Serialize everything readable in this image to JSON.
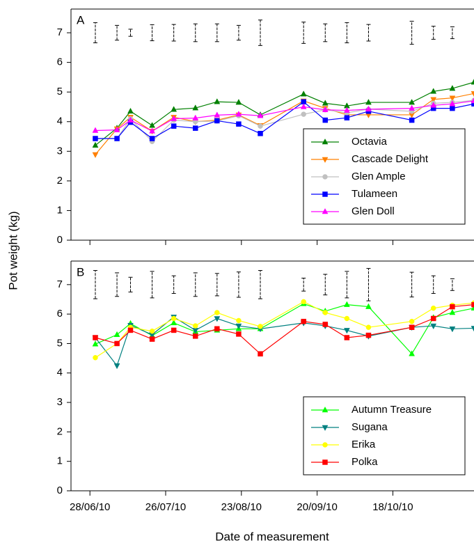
{
  "chart_data": [
    {
      "type": "line",
      "panel": "A",
      "y_label": "Pot weight (kg)",
      "x": [
        "30/06/10",
        "08/07/10",
        "13/07/10",
        "21/07/10",
        "29/07/10",
        "06/08/10",
        "14/08/10",
        "22/08/10",
        "30/08/10",
        "15/09/10",
        "23/09/10",
        "01/10/10",
        "09/10/10",
        "25/10/10",
        "02/11/10",
        "09/11/10",
        "17/11/10"
      ],
      "xlim": [
        "21/06/10",
        "17/11/10"
      ],
      "ylim": [
        0,
        7.8
      ],
      "yticks": [
        0,
        1,
        2,
        3,
        4,
        5,
        6,
        7
      ],
      "legend": "lower right",
      "error_bars": {
        "values": [
          7,
          7,
          7,
          7,
          7,
          7,
          7,
          7,
          7,
          7,
          7,
          7,
          7,
          7,
          7,
          7,
          null
        ],
        "errors": [
          0.34,
          0.25,
          0.12,
          0.27,
          0.28,
          0.3,
          0.3,
          0.25,
          0.43,
          0.36,
          0.3,
          0.34,
          0.28,
          0.39,
          0.22,
          0.2,
          null
        ]
      },
      "series": [
        {
          "name": "Octavia",
          "color": "#008000",
          "marker": "triangle-up",
          "values": [
            3.2,
            3.78,
            4.35,
            3.87,
            4.41,
            4.46,
            4.67,
            4.65,
            4.23,
            4.93,
            4.62,
            4.53,
            4.65,
            4.65,
            5.02,
            5.12,
            5.33
          ]
        },
        {
          "name": "Cascade Delight",
          "color": "#ff8000",
          "marker": "triangle-down",
          "values": [
            2.89,
            3.76,
            4.15,
            3.68,
            4.15,
            4.0,
            4.05,
            4.23,
            3.87,
            4.7,
            4.45,
            4.23,
            4.23,
            4.23,
            4.75,
            4.8,
            4.95
          ]
        },
        {
          "name": "Glen Ample",
          "color": "#c0c0c0",
          "marker": "circle",
          "values": [
            3.43,
            3.43,
            4.1,
            3.33,
            4.05,
            4.0,
            4.02,
            4.2,
            3.85,
            4.25,
            4.4,
            4.3,
            4.42,
            4.35,
            4.62,
            4.65,
            4.72
          ]
        },
        {
          "name": "Tulameen",
          "color": "#0000ff",
          "marker": "square",
          "values": [
            3.43,
            3.43,
            3.98,
            3.43,
            3.85,
            3.78,
            4.03,
            3.92,
            3.6,
            4.67,
            4.05,
            4.13,
            4.35,
            4.05,
            4.45,
            4.45,
            4.6
          ]
        },
        {
          "name": "Glen Doll",
          "color": "#ff00ff",
          "marker": "triangle-up",
          "values": [
            3.7,
            3.72,
            4.05,
            3.68,
            4.1,
            4.12,
            4.22,
            4.25,
            4.2,
            4.5,
            4.4,
            4.38,
            4.42,
            4.45,
            4.55,
            4.6,
            4.7
          ]
        }
      ]
    },
    {
      "type": "line",
      "panel": "B",
      "x_label": "Date of measurement",
      "x": [
        "30/06/10",
        "08/07/10",
        "13/07/10",
        "21/07/10",
        "29/07/10",
        "06/08/10",
        "14/08/10",
        "22/08/10",
        "30/08/10",
        "15/09/10",
        "23/09/10",
        "01/10/10",
        "09/10/10",
        "25/10/10",
        "02/11/10",
        "09/11/10",
        "17/11/10"
      ],
      "xlim": [
        "21/06/10",
        "17/11/10"
      ],
      "xticks": [
        "28/06/10",
        "26/07/10",
        "23/08/10",
        "20/09/10",
        "18/10/10"
      ],
      "ylim": [
        0,
        7.8
      ],
      "yticks": [
        0,
        1,
        2,
        3,
        4,
        5,
        6,
        7
      ],
      "legend": "lower right",
      "error_bars": {
        "values": [
          7,
          7,
          7,
          7,
          7,
          7,
          7,
          7,
          7,
          7,
          7,
          7,
          7,
          7,
          7,
          7,
          null
        ],
        "errors": [
          0.48,
          0.4,
          0.25,
          0.45,
          0.3,
          0.4,
          0.38,
          0.43,
          0.48,
          0.22,
          0.35,
          0.45,
          0.55,
          0.42,
          0.3,
          0.2,
          null
        ]
      },
      "series": [
        {
          "name": "Autumn Treasure",
          "color": "#00ff00",
          "marker": "triangle-up",
          "values": [
            4.98,
            5.3,
            5.68,
            5.27,
            5.7,
            5.4,
            5.45,
            5.5,
            5.5,
            6.35,
            6.1,
            6.32,
            6.25,
            4.65,
            5.88,
            6.05,
            6.2
          ]
        },
        {
          "name": "Sugana",
          "color": "#008080",
          "marker": "triangle-down",
          "values": [
            5.2,
            4.25,
            5.62,
            5.3,
            5.9,
            5.45,
            5.85,
            5.6,
            5.5,
            5.7,
            5.6,
            5.45,
            5.25,
            5.55,
            5.6,
            5.5,
            5.52
          ]
        },
        {
          "name": "Erika",
          "color": "#ffff00",
          "marker": "circle",
          "values": [
            4.52,
            5.0,
            5.55,
            5.42,
            5.85,
            5.6,
            6.05,
            5.78,
            5.58,
            6.42,
            6.05,
            5.85,
            5.55,
            5.75,
            6.2,
            6.3,
            6.38
          ]
        },
        {
          "name": "Polka",
          "color": "#ff0000",
          "marker": "square",
          "values": [
            5.2,
            5.0,
            5.45,
            5.15,
            5.45,
            5.25,
            5.5,
            5.32,
            4.65,
            5.75,
            5.65,
            5.2,
            5.28,
            5.55,
            5.85,
            6.25,
            6.32
          ]
        }
      ]
    }
  ]
}
